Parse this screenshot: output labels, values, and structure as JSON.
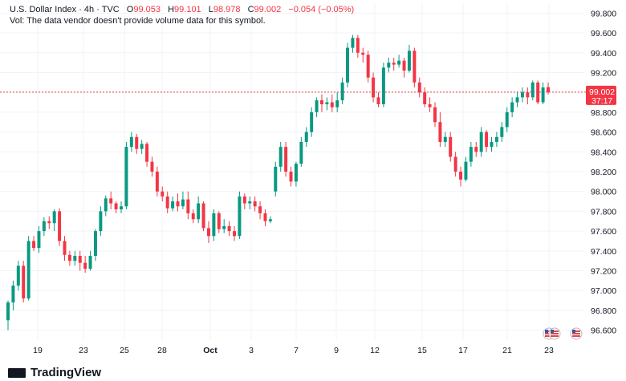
{
  "header": {
    "symbol_line": "U.S. Dollar Index · 4h · TVC",
    "open_label": "O",
    "open": "99.053",
    "high_label": "H",
    "high": "99.101",
    "low_label": "L",
    "low": "98.978",
    "close_label": "C",
    "close": "99.002",
    "change": "−0.054 (−0.05%)",
    "volume_note": "Vol: The data vendor doesn't provide volume data for this symbol."
  },
  "price_tag": {
    "price": "99.002",
    "countdown": "37:17"
  },
  "logo_text": "TradingView",
  "colors": {
    "up": "#089981",
    "down": "#f23645",
    "grid": "#f0f3fa",
    "axis_text": "#131722"
  },
  "chart_data": {
    "type": "candlestick",
    "ylim": [
      96.5,
      99.9
    ],
    "y_ticks": [
      96.6,
      96.8,
      97.0,
      97.2,
      97.4,
      97.6,
      97.8,
      98.0,
      98.2,
      98.4,
      98.6,
      98.8,
      99.0,
      99.2,
      99.4,
      99.6,
      99.8
    ],
    "x_labels": [
      "19",
      "23",
      "25",
      "28",
      "Oct",
      "3",
      "7",
      "9",
      "12",
      "15",
      "17",
      "21",
      "23"
    ],
    "current_price": 99.002,
    "candles": [
      [
        96.7,
        96.88,
        96.6,
        96.9
      ],
      [
        96.88,
        97.05,
        96.8,
        97.1
      ],
      [
        97.05,
        97.25,
        97.0,
        97.3
      ],
      [
        97.25,
        96.92,
        96.88,
        97.3
      ],
      [
        96.92,
        97.5,
        96.9,
        97.55
      ],
      [
        97.5,
        97.43,
        97.4,
        97.55
      ],
      [
        97.43,
        97.6,
        97.38,
        97.65
      ],
      [
        97.6,
        97.7,
        97.55,
        97.74
      ],
      [
        97.7,
        97.68,
        97.62,
        97.75
      ],
      [
        97.68,
        97.8,
        97.6,
        97.82
      ],
      [
        97.8,
        97.5,
        97.45,
        97.83
      ],
      [
        97.5,
        97.36,
        97.3,
        97.55
      ],
      [
        97.36,
        97.3,
        97.25,
        97.4
      ],
      [
        97.3,
        97.35,
        97.25,
        97.4
      ],
      [
        97.35,
        97.28,
        97.2,
        97.4
      ],
      [
        97.28,
        97.22,
        97.18,
        97.35
      ],
      [
        97.22,
        97.35,
        97.2,
        97.4
      ],
      [
        97.35,
        97.6,
        97.3,
        97.62
      ],
      [
        97.6,
        97.8,
        97.55,
        97.85
      ],
      [
        97.8,
        97.93,
        97.75,
        97.96
      ],
      [
        97.93,
        97.88,
        97.82,
        98.0
      ],
      [
        97.88,
        97.82,
        97.78,
        97.9
      ],
      [
        97.82,
        97.85,
        97.78,
        97.9
      ],
      [
        97.85,
        98.45,
        97.82,
        98.5
      ],
      [
        98.45,
        98.55,
        98.4,
        98.6
      ],
      [
        98.55,
        98.43,
        98.38,
        98.58
      ],
      [
        98.43,
        98.48,
        98.38,
        98.52
      ],
      [
        98.48,
        98.3,
        98.25,
        98.5
      ],
      [
        98.3,
        98.2,
        98.15,
        98.35
      ],
      [
        98.2,
        98.0,
        97.95,
        98.25
      ],
      [
        98.0,
        97.95,
        97.9,
        98.05
      ],
      [
        97.95,
        97.83,
        97.78,
        98.0
      ],
      [
        97.83,
        97.9,
        97.8,
        97.95
      ],
      [
        97.9,
        97.85,
        97.8,
        97.98
      ],
      [
        97.85,
        97.92,
        97.82,
        98.0
      ],
      [
        97.92,
        97.78,
        97.72,
        98.0
      ],
      [
        97.78,
        97.72,
        97.68,
        97.82
      ],
      [
        97.72,
        97.88,
        97.68,
        97.95
      ],
      [
        97.88,
        97.63,
        97.6,
        97.9
      ],
      [
        97.63,
        97.55,
        97.48,
        97.7
      ],
      [
        97.55,
        97.78,
        97.5,
        97.82
      ],
      [
        97.78,
        97.62,
        97.58,
        97.8
      ],
      [
        97.62,
        97.65,
        97.58,
        97.72
      ],
      [
        97.65,
        97.6,
        97.55,
        97.7
      ],
      [
        97.6,
        97.55,
        97.5,
        97.65
      ],
      [
        97.55,
        97.95,
        97.52,
        98.0
      ],
      [
        97.95,
        97.88,
        97.82,
        97.98
      ],
      [
        97.88,
        97.9,
        97.82,
        97.95
      ],
      [
        97.9,
        97.85,
        97.8,
        97.95
      ],
      [
        97.85,
        97.78,
        97.72,
        97.9
      ],
      [
        97.78,
        97.7,
        97.65,
        97.82
      ],
      [
        97.7,
        97.72,
        97.68,
        97.75
      ],
      [
        98.0,
        98.25,
        97.95,
        98.3
      ],
      [
        98.25,
        98.45,
        98.2,
        98.5
      ],
      [
        98.45,
        98.2,
        98.15,
        98.5
      ],
      [
        98.2,
        98.1,
        98.05,
        98.25
      ],
      [
        98.1,
        98.28,
        98.05,
        98.3
      ],
      [
        98.28,
        98.5,
        98.25,
        98.55
      ],
      [
        98.5,
        98.6,
        98.45,
        98.65
      ],
      [
        98.6,
        98.8,
        98.55,
        98.85
      ],
      [
        98.8,
        98.92,
        98.75,
        98.95
      ],
      [
        98.92,
        98.88,
        98.8,
        98.98
      ],
      [
        98.88,
        98.9,
        98.82,
        98.95
      ],
      [
        98.9,
        98.85,
        98.8,
        98.98
      ],
      [
        98.85,
        98.92,
        98.8,
        99.0
      ],
      [
        98.92,
        99.1,
        98.88,
        99.15
      ],
      [
        99.1,
        99.45,
        99.05,
        99.5
      ],
      [
        99.45,
        99.55,
        99.4,
        99.58
      ],
      [
        99.55,
        99.4,
        99.35,
        99.58
      ],
      [
        99.4,
        99.38,
        99.3,
        99.45
      ],
      [
        99.38,
        99.15,
        99.1,
        99.42
      ],
      [
        99.15,
        98.95,
        98.9,
        99.2
      ],
      [
        98.95,
        98.88,
        98.85,
        99.0
      ],
      [
        98.88,
        99.25,
        98.85,
        99.3
      ],
      [
        99.25,
        99.3,
        99.2,
        99.35
      ],
      [
        99.3,
        99.28,
        99.22,
        99.35
      ],
      [
        99.28,
        99.32,
        99.25,
        99.38
      ],
      [
        99.32,
        99.22,
        99.15,
        99.35
      ],
      [
        99.22,
        99.42,
        99.2,
        99.48
      ],
      [
        99.42,
        99.1,
        99.05,
        99.45
      ],
      [
        99.1,
        99.0,
        98.95,
        99.15
      ],
      [
        99.0,
        98.88,
        98.85,
        99.05
      ],
      [
        98.88,
        98.85,
        98.8,
        98.95
      ],
      [
        98.85,
        98.7,
        98.65,
        98.9
      ],
      [
        98.7,
        98.5,
        98.45,
        98.8
      ],
      [
        98.5,
        98.55,
        98.45,
        98.6
      ],
      [
        98.55,
        98.35,
        98.3,
        98.6
      ],
      [
        98.35,
        98.2,
        98.15,
        98.4
      ],
      [
        98.2,
        98.12,
        98.05,
        98.25
      ],
      [
        98.12,
        98.3,
        98.1,
        98.35
      ],
      [
        98.3,
        98.45,
        98.25,
        98.5
      ],
      [
        98.45,
        98.4,
        98.35,
        98.5
      ],
      [
        98.4,
        98.6,
        98.35,
        98.65
      ],
      [
        98.6,
        98.45,
        98.4,
        98.62
      ],
      [
        98.45,
        98.5,
        98.4,
        98.55
      ],
      [
        98.5,
        98.55,
        98.45,
        98.6
      ],
      [
        98.55,
        98.65,
        98.5,
        98.7
      ],
      [
        98.65,
        98.8,
        98.6,
        98.85
      ],
      [
        98.8,
        98.9,
        98.75,
        98.95
      ],
      [
        98.9,
        98.95,
        98.85,
        99.0
      ],
      [
        98.95,
        99.0,
        98.9,
        99.05
      ],
      [
        99.0,
        98.95,
        98.88,
        99.05
      ],
      [
        98.95,
        99.1,
        98.92,
        99.12
      ],
      [
        99.1,
        98.9,
        98.88,
        99.12
      ],
      [
        98.9,
        99.05,
        98.88,
        99.1
      ],
      [
        99.053,
        99.002,
        98.978,
        99.101
      ]
    ]
  }
}
